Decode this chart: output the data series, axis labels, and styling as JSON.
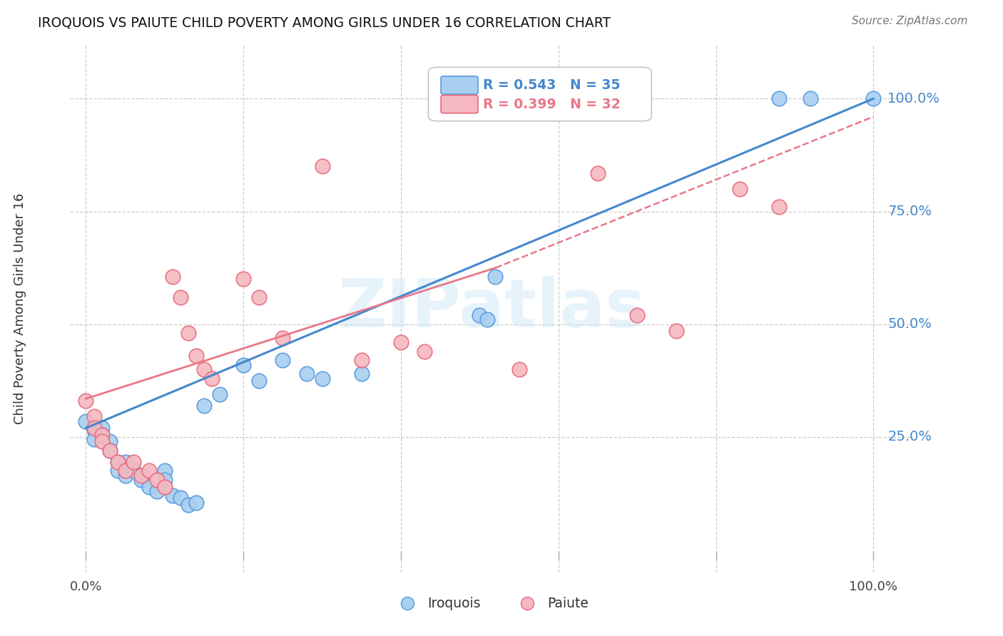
{
  "title": "IROQUOIS VS PAIUTE CHILD POVERTY AMONG GIRLS UNDER 16 CORRELATION CHART",
  "source": "Source: ZipAtlas.com",
  "ylabel": "Child Poverty Among Girls Under 16",
  "y_tick_labels": [
    "25.0%",
    "50.0%",
    "75.0%",
    "100.0%"
  ],
  "y_ticks": [
    0.25,
    0.5,
    0.75,
    1.0
  ],
  "x_tick_positions": [
    0.0,
    0.2,
    0.4,
    0.6,
    0.8,
    1.0
  ],
  "iroquois_color_fill": "#a8cff0",
  "iroquois_color_edge": "#5599dd",
  "paiute_color_fill": "#f5b8c0",
  "paiute_color_edge": "#e86878",
  "iroquois_line_color": "#4488cc",
  "paiute_line_color": "#e87888",
  "background_color": "#ffffff",
  "watermark_color": "#d0e8f8",
  "watermark_alpha": 0.5,
  "legend_r1": "R = 0.543",
  "legend_n1": "N = 35",
  "legend_r2": "R = 0.399",
  "legend_n2": "N = 32",
  "blue_line": [
    0.0,
    0.27,
    1.0,
    1.0
  ],
  "pink_solid_line": [
    0.0,
    0.335,
    0.52,
    0.625
  ],
  "pink_dashed_line": [
    0.52,
    0.625,
    1.0,
    0.96
  ],
  "iroquois_x": [
    0.0,
    0.01,
    0.01,
    0.02,
    0.02,
    0.03,
    0.03,
    0.04,
    0.04,
    0.05,
    0.05,
    0.06,
    0.07,
    0.08,
    0.09,
    0.1,
    0.1,
    0.11,
    0.12,
    0.13,
    0.14,
    0.15,
    0.17,
    0.2,
    0.22,
    0.25,
    0.28,
    0.3,
    0.35,
    0.5,
    0.51,
    0.52,
    0.88,
    0.92,
    1.0
  ],
  "iroquois_y": [
    0.285,
    0.265,
    0.245,
    0.27,
    0.255,
    0.24,
    0.22,
    0.195,
    0.175,
    0.195,
    0.165,
    0.175,
    0.155,
    0.14,
    0.13,
    0.175,
    0.155,
    0.12,
    0.115,
    0.1,
    0.105,
    0.32,
    0.345,
    0.41,
    0.375,
    0.42,
    0.39,
    0.38,
    0.39,
    0.52,
    0.51,
    0.605,
    1.0,
    1.0,
    1.0
  ],
  "paiute_x": [
    0.0,
    0.01,
    0.01,
    0.02,
    0.02,
    0.03,
    0.04,
    0.05,
    0.06,
    0.07,
    0.08,
    0.09,
    0.1,
    0.11,
    0.12,
    0.13,
    0.14,
    0.15,
    0.16,
    0.2,
    0.22,
    0.25,
    0.3,
    0.35,
    0.4,
    0.43,
    0.55,
    0.65,
    0.7,
    0.75,
    0.83,
    0.88
  ],
  "paiute_y": [
    0.33,
    0.295,
    0.27,
    0.255,
    0.24,
    0.22,
    0.195,
    0.175,
    0.195,
    0.165,
    0.175,
    0.155,
    0.14,
    0.605,
    0.56,
    0.48,
    0.43,
    0.4,
    0.38,
    0.6,
    0.56,
    0.47,
    0.85,
    0.42,
    0.46,
    0.44,
    0.4,
    0.835,
    0.52,
    0.485,
    0.8,
    0.76
  ]
}
